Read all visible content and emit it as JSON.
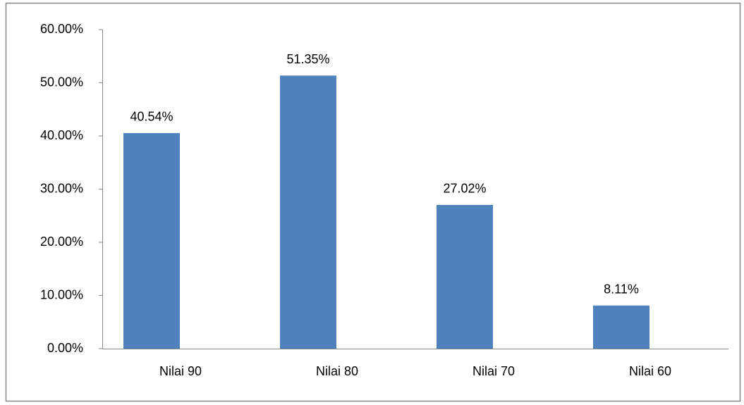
{
  "chart_data": {
    "type": "bar",
    "categories": [
      "Nilai 90",
      "Nilai 80",
      "Nilai 70",
      "Nilai 60"
    ],
    "values": [
      40.54,
      51.35,
      27.02,
      8.11
    ],
    "value_labels": [
      "40.54%",
      "51.35%",
      "27.02%",
      "8.11%"
    ],
    "color": "#4f81bd",
    "ylim": [
      0,
      60
    ],
    "yticks": [
      {
        "value": 0,
        "label": "0.00%"
      },
      {
        "value": 10,
        "label": "10.00%"
      },
      {
        "value": 20,
        "label": "20.00%"
      },
      {
        "value": 30,
        "label": "30.00%"
      },
      {
        "value": 40,
        "label": "40.00%"
      },
      {
        "value": 50,
        "label": "50.00%"
      },
      {
        "value": 60,
        "label": "60.00%"
      }
    ],
    "grid": false
  }
}
